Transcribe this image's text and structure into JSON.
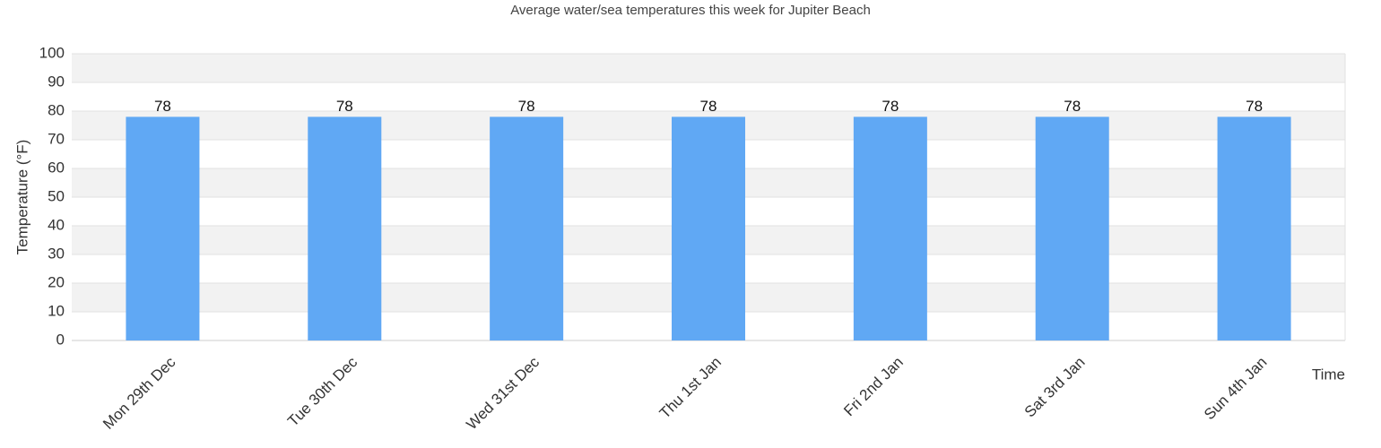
{
  "chart_data": {
    "type": "bar",
    "title": "Average water/sea temperatures this week for Jupiter Beach",
    "x_label": "Time",
    "y_label": "Temperature (°F)",
    "categories": [
      "Mon 29th Dec",
      "Tue 30th Dec",
      "Wed 31st Dec",
      "Thu 1st Jan",
      "Fri 2nd Jan",
      "Sat 3rd Jan",
      "Sun 4th Jan"
    ],
    "values": [
      78,
      78,
      78,
      78,
      78,
      78,
      78
    ],
    "color": "#60a8f4",
    "ylim": [
      0,
      100
    ],
    "yticks": [
      0,
      10,
      20,
      30,
      40,
      50,
      60,
      70,
      80,
      90,
      100
    ],
    "grid": true
  }
}
